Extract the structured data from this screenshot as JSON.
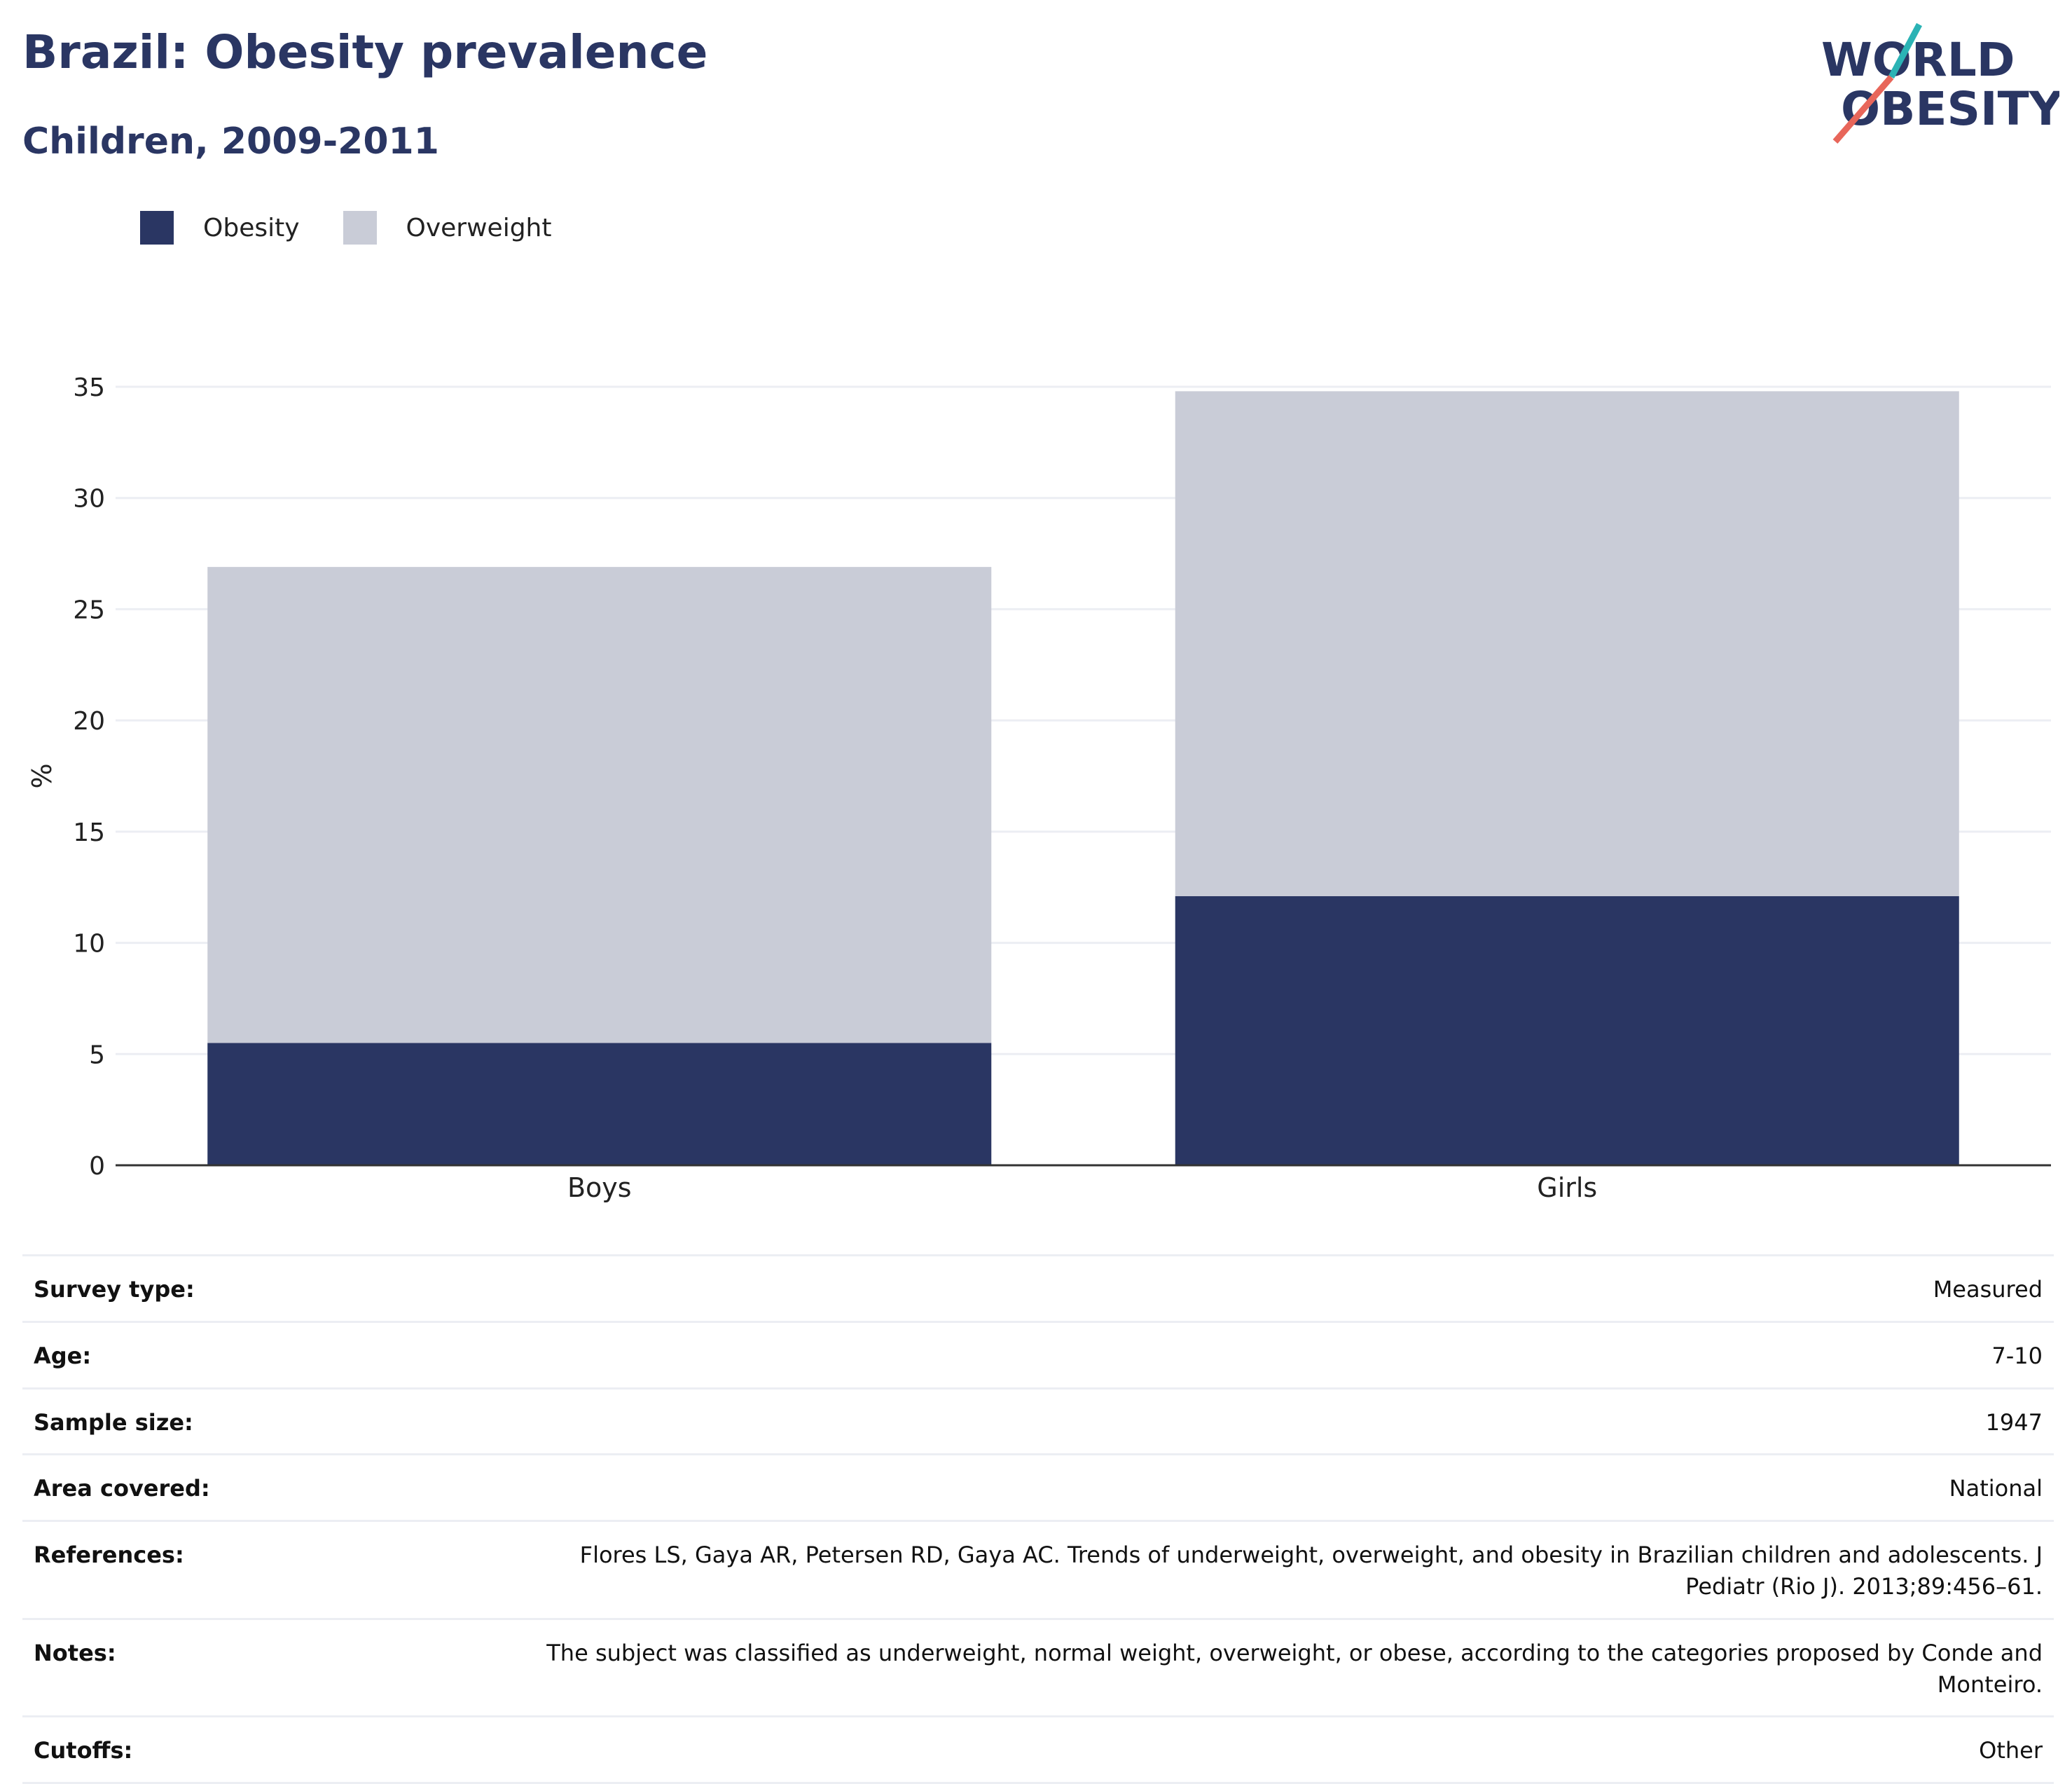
{
  "header": {
    "title": "Brazil: Obesity prevalence",
    "subtitle": "Children, 2009-2011"
  },
  "logo": {
    "line1": "WORLD",
    "line2": "OBESITY",
    "accent_teal": "#2bb3b5",
    "accent_coral": "#e8665a"
  },
  "colors": {
    "obesity": "#2a3663",
    "overweight": "#c9ccd7",
    "text_dark": "#2a3663",
    "grid": "#eceef3"
  },
  "chart_data": {
    "type": "bar",
    "stacked": true,
    "categories": [
      "Boys",
      "Girls"
    ],
    "series": [
      {
        "name": "Obesity",
        "values": [
          5.5,
          12.1
        ]
      },
      {
        "name": "Overweight",
        "values": [
          21.4,
          22.7
        ]
      }
    ],
    "ylabel": "%",
    "xlabel": "",
    "ylim": [
      0,
      35
    ],
    "yticks": [
      0,
      5,
      10,
      15,
      20,
      25,
      30,
      35
    ],
    "grid": true,
    "legend_position": "top-left"
  },
  "info": [
    {
      "label": "Survey type:",
      "value": "Measured"
    },
    {
      "label": "Age:",
      "value": "7-10"
    },
    {
      "label": "Sample size:",
      "value": "1947"
    },
    {
      "label": "Area covered:",
      "value": "National"
    },
    {
      "label": "References:",
      "value": "Flores LS, Gaya AR, Petersen RD, Gaya AC. Trends of underweight, overweight, and obesity in Brazilian children and adolescents. J Pediatr (Rio J). 2013;89:456–61."
    },
    {
      "label": "Notes:",
      "value": "The subject was classified as underweight, normal weight, overweight, or obese, according to the categories proposed by Conde and Monteiro."
    },
    {
      "label": "Cutoffs:",
      "value": "Other"
    }
  ]
}
